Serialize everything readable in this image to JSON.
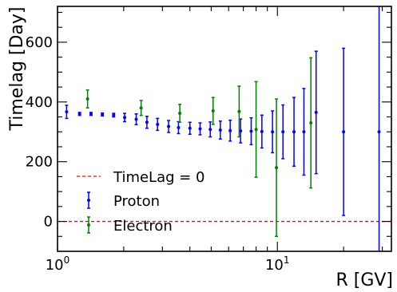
{
  "chart_data": {
    "type": "scatter",
    "title": "",
    "xlabel": "R [GV]",
    "ylabel": "Timelag [Day]",
    "x_scale": "log",
    "xlim": [
      1.0,
      33.0
    ],
    "ylim": [
      -100,
      720
    ],
    "x_ticks": [
      {
        "value": 1,
        "base": "10",
        "exp": "0"
      },
      {
        "value": 10,
        "base": "10",
        "exp": "1"
      }
    ],
    "y_ticks": [
      0,
      200,
      400,
      600
    ],
    "grid": false,
    "legend_position": "bottom-left",
    "reference_line": {
      "name": "TimeLag = 0",
      "y": 0,
      "color": "#ff0000",
      "style": "dashed"
    },
    "series": [
      {
        "name": "Proton",
        "color": "#0000ff",
        "points": [
          {
            "x": 1.1,
            "y": 367,
            "err": 22
          },
          {
            "x": 1.26,
            "y": 360,
            "err": 5
          },
          {
            "x": 1.42,
            "y": 360,
            "err": 5
          },
          {
            "x": 1.6,
            "y": 358,
            "err": 5
          },
          {
            "x": 1.8,
            "y": 356,
            "err": 6
          },
          {
            "x": 2.02,
            "y": 348,
            "err": 14
          },
          {
            "x": 2.28,
            "y": 342,
            "err": 18
          },
          {
            "x": 2.55,
            "y": 332,
            "err": 20
          },
          {
            "x": 2.85,
            "y": 325,
            "err": 20
          },
          {
            "x": 3.2,
            "y": 318,
            "err": 20
          },
          {
            "x": 3.55,
            "y": 314,
            "err": 20
          },
          {
            "x": 4.0,
            "y": 312,
            "err": 20
          },
          {
            "x": 4.45,
            "y": 310,
            "err": 20
          },
          {
            "x": 4.95,
            "y": 308,
            "err": 25
          },
          {
            "x": 5.5,
            "y": 306,
            "err": 30
          },
          {
            "x": 6.1,
            "y": 304,
            "err": 35
          },
          {
            "x": 6.8,
            "y": 303,
            "err": 40
          },
          {
            "x": 7.6,
            "y": 302,
            "err": 45
          },
          {
            "x": 8.5,
            "y": 301,
            "err": 55
          },
          {
            "x": 9.5,
            "y": 300,
            "err": 70
          },
          {
            "x": 10.6,
            "y": 300,
            "err": 90
          },
          {
            "x": 11.9,
            "y": 300,
            "err": 115
          },
          {
            "x": 13.2,
            "y": 300,
            "err": 145
          },
          {
            "x": 15.0,
            "y": 365,
            "err": 205
          },
          {
            "x": 20.0,
            "y": 300,
            "err": 280
          },
          {
            "x": 29.0,
            "y": 300,
            "err": 420
          }
        ]
      },
      {
        "name": "Electron",
        "color": "#008000",
        "points": [
          {
            "x": 1.37,
            "y": 410,
            "err": 30
          },
          {
            "x": 2.4,
            "y": 380,
            "err": 25
          },
          {
            "x": 3.6,
            "y": 362,
            "err": 30
          },
          {
            "x": 5.1,
            "y": 370,
            "err": 45
          },
          {
            "x": 6.7,
            "y": 368,
            "err": 85
          },
          {
            "x": 8.0,
            "y": 308,
            "err": 160
          },
          {
            "x": 9.9,
            "y": 180,
            "err": 230
          },
          {
            "x": 14.2,
            "y": 330,
            "err": 218
          }
        ]
      }
    ]
  }
}
